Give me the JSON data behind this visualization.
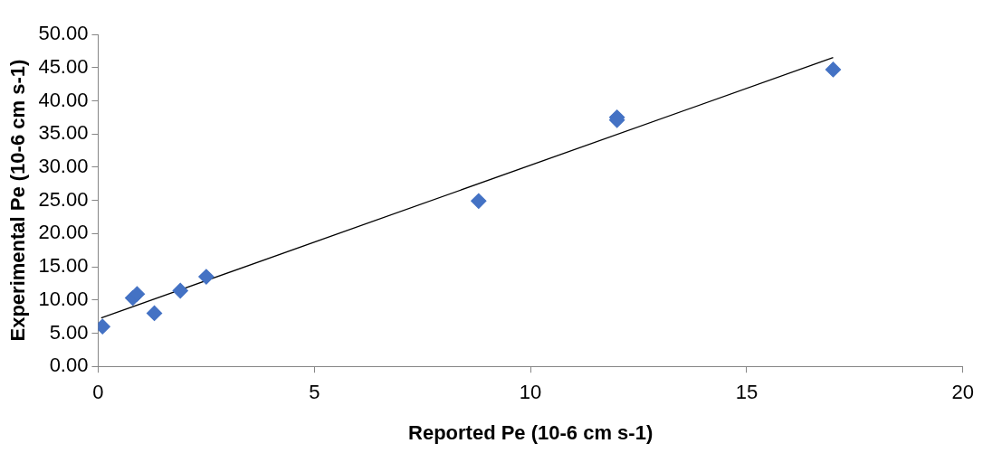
{
  "chart_data": {
    "type": "scatter",
    "xlabel": "Reported Pe (10-6 cm s-1)",
    "ylabel": "Experimental Pe (10-6 cm s-1)",
    "xlim": [
      0,
      20
    ],
    "xticks": [
      0,
      5,
      10,
      15,
      20
    ],
    "ylim": [
      0,
      50
    ],
    "yticks": [
      {
        "value": 0,
        "label": "0.00"
      },
      {
        "value": 5,
        "label": "5.00"
      },
      {
        "value": 10,
        "label": "10.00"
      },
      {
        "value": 15,
        "label": "15.00"
      },
      {
        "value": 20,
        "label": "20.00"
      },
      {
        "value": 25,
        "label": "25.00"
      },
      {
        "value": 30,
        "label": "30.00"
      },
      {
        "value": 35,
        "label": "35.00"
      },
      {
        "value": 40,
        "label": "40.00"
      },
      {
        "value": 45,
        "label": "45.00"
      },
      {
        "value": 50,
        "label": "50.00"
      }
    ],
    "grid": false,
    "legend": false,
    "marker": "diamond",
    "series": [
      {
        "type": "scatter",
        "color": "#4472c4",
        "x": [
          0.1,
          0.8,
          0.9,
          1.3,
          1.9,
          2.5,
          8.8,
          12.0,
          12.0,
          17.0
        ],
        "values": [
          6.0,
          10.3,
          10.9,
          8.0,
          11.4,
          13.5,
          24.9,
          37.5,
          37.1,
          44.7
        ]
      },
      {
        "type": "line",
        "color": "#000000",
        "marker": "none",
        "line_style": "solid",
        "x": [
          0.07,
          17.0
        ],
        "values": [
          7.3,
          46.5
        ]
      }
    ]
  }
}
